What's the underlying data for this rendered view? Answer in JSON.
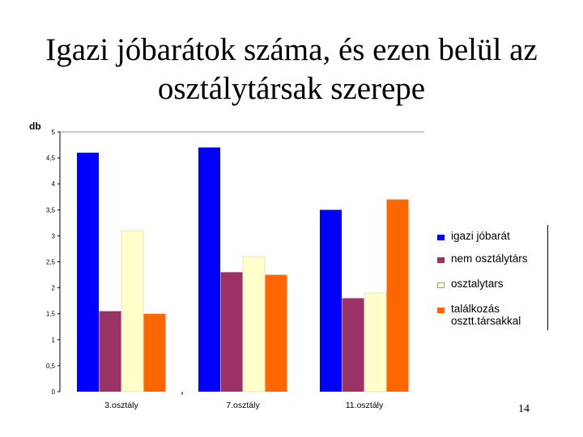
{
  "slide": {
    "title_line1": "Igazi jóbarátok száma, és ezen belül az",
    "title_line2": "osztálytársak szerepe",
    "page_number": "14"
  },
  "chart_data": {
    "type": "bar",
    "title": "",
    "ylabel": "db",
    "xlabel": "",
    "ylim": [
      0,
      5
    ],
    "yticks": [
      "0",
      "0,5",
      "1",
      "1,5",
      "2",
      "2,5",
      "3",
      "3,5",
      "4",
      "4,5",
      "5"
    ],
    "categories": [
      "3.osztály",
      "7.osztály",
      "11.osztály"
    ],
    "series": [
      {
        "name": "igazi jóbarát",
        "color": "#0000ff",
        "values": [
          4.6,
          4.7,
          3.5
        ]
      },
      {
        "name": "nem osztálytárs",
        "color": "#993366",
        "values": [
          1.55,
          2.3,
          1.8
        ]
      },
      {
        "name": "osztalytars",
        "color": "#ffffcc",
        "values": [
          3.1,
          2.6,
          1.9
        ]
      },
      {
        "name": "találkozás\nosztt.társakkal",
        "color": "#ff6600",
        "values": [
          1.5,
          2.25,
          3.7
        ]
      }
    ],
    "grid": false,
    "legend_position": "right"
  }
}
